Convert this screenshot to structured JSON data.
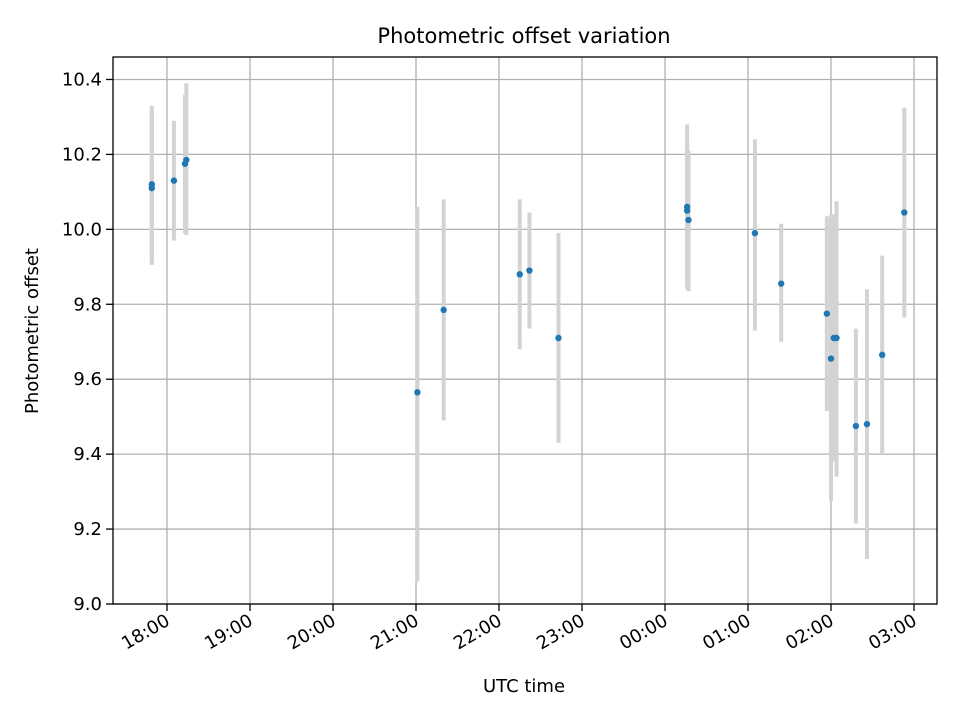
{
  "chart_data": {
    "type": "scatter",
    "title": "Photometric offset variation",
    "xlabel": "UTC time",
    "ylabel": "Photometric offset",
    "x_axis": {
      "kind": "time",
      "range": [
        "17:35",
        "03:20"
      ],
      "ticks": [
        "18:00",
        "19:00",
        "20:00",
        "21:00",
        "22:00",
        "23:00",
        "00:00",
        "01:00",
        "02:00",
        "03:00"
      ]
    },
    "y_axis": {
      "range": [
        9.0,
        10.46
      ],
      "ticks": [
        "9.0",
        "9.2",
        "9.4",
        "9.6",
        "9.8",
        "10.0",
        "10.2",
        "10.4"
      ]
    },
    "grid": true,
    "colors": {
      "point": "#1f77b4",
      "errorbar": "#d3d3d3",
      "grid": "#b0b0b0"
    },
    "series": [
      {
        "points": [
          {
            "x": "17:49",
            "y": 10.12,
            "err_low": 9.92,
            "err_high": 10.33
          },
          {
            "x": "17:49",
            "y": 10.11,
            "err_low": 9.905,
            "err_high": 10.32
          },
          {
            "x": "18:05",
            "y": 10.13,
            "err_low": 9.97,
            "err_high": 10.29
          },
          {
            "x": "18:13",
            "y": 10.175,
            "err_low": 9.99,
            "err_high": 10.36
          },
          {
            "x": "18:14",
            "y": 10.185,
            "err_low": 9.985,
            "err_high": 10.39
          },
          {
            "x": "21:01",
            "y": 9.565,
            "err_low": 9.06,
            "err_high": 10.06
          },
          {
            "x": "21:20",
            "y": 9.785,
            "err_low": 9.49,
            "err_high": 10.08
          },
          {
            "x": "22:15",
            "y": 9.88,
            "err_low": 9.68,
            "err_high": 10.08
          },
          {
            "x": "22:22",
            "y": 9.89,
            "err_low": 9.735,
            "err_high": 10.045
          },
          {
            "x": "22:43",
            "y": 9.71,
            "err_low": 9.43,
            "err_high": 9.99
          },
          {
            "x": "00:16",
            "y": 10.05,
            "err_low": 9.87,
            "err_high": 10.23
          },
          {
            "x": "00:16",
            "y": 10.06,
            "err_low": 9.84,
            "err_high": 10.28
          },
          {
            "x": "00:17",
            "y": 10.025,
            "err_low": 9.835,
            "err_high": 10.21
          },
          {
            "x": "01:05",
            "y": 9.99,
            "err_low": 9.73,
            "err_high": 10.24
          },
          {
            "x": "01:24",
            "y": 9.855,
            "err_low": 9.7,
            "err_high": 10.015
          },
          {
            "x": "01:57",
            "y": 9.775,
            "err_low": 9.515,
            "err_high": 10.035
          },
          {
            "x": "02:00",
            "y": 9.655,
            "err_low": 9.275,
            "err_high": 10.04
          },
          {
            "x": "02:02",
            "y": 9.71,
            "err_low": 9.38,
            "err_high": 10.04
          },
          {
            "x": "02:04",
            "y": 9.71,
            "err_low": 9.34,
            "err_high": 10.075
          },
          {
            "x": "02:18",
            "y": 9.475,
            "err_low": 9.215,
            "err_high": 9.735
          },
          {
            "x": "02:26",
            "y": 9.48,
            "err_low": 9.12,
            "err_high": 9.84
          },
          {
            "x": "02:37",
            "y": 9.665,
            "err_low": 9.4,
            "err_high": 9.93
          },
          {
            "x": "02:53",
            "y": 10.045,
            "err_low": 9.765,
            "err_high": 10.325
          }
        ]
      }
    ]
  }
}
